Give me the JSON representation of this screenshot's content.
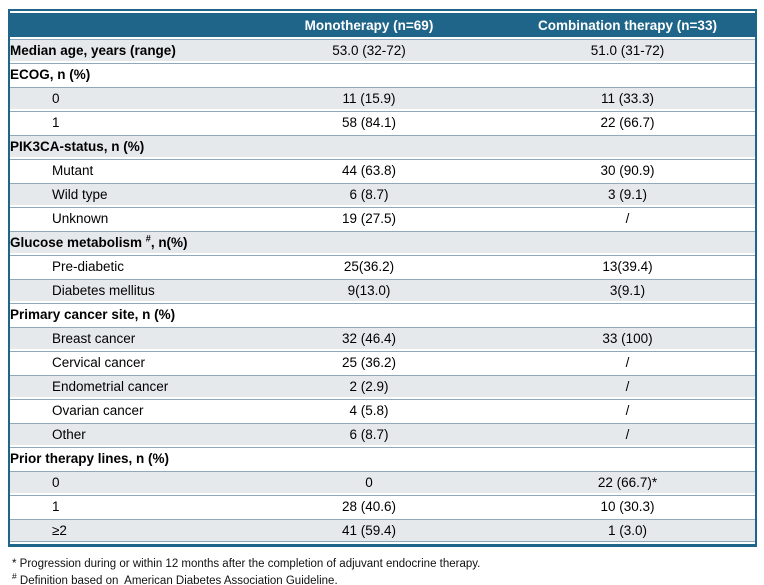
{
  "colors": {
    "header_bg": "#1F6489",
    "header_text": "#FFFFFF",
    "outer_border": "#1F6489",
    "row_divider": "#8FA9BA",
    "shaded_row_bg": "#E6E9EB",
    "body_text": "#000000"
  },
  "table": {
    "columns": [
      {
        "label": ""
      },
      {
        "label": "Monotherapy (n=69)"
      },
      {
        "label": "Combination therapy (n=33)"
      }
    ],
    "rows": [
      {
        "kind": "stat",
        "bold": true,
        "indent": false,
        "shaded": true,
        "label": "Median age, years (range)",
        "monotherapy": "53.0 (32-72)",
        "combination": "51.0 (31-72)"
      },
      {
        "kind": "section",
        "shaded": false,
        "label": "ECOG, n (%)"
      },
      {
        "kind": "stat",
        "bold": false,
        "indent": true,
        "shaded": true,
        "label": "0",
        "monotherapy": "11 (15.9)",
        "combination": "11 (33.3)"
      },
      {
        "kind": "stat",
        "bold": false,
        "indent": true,
        "shaded": false,
        "label": "1",
        "monotherapy": "58 (84.1)",
        "combination": "22 (66.7)"
      },
      {
        "kind": "section",
        "shaded": true,
        "label": "PIK3CA-status, n (%)"
      },
      {
        "kind": "stat",
        "bold": false,
        "indent": true,
        "shaded": false,
        "label": "Mutant",
        "monotherapy": "44 (63.8)",
        "combination": "30 (90.9)"
      },
      {
        "kind": "stat",
        "bold": false,
        "indent": true,
        "shaded": true,
        "label": "Wild type",
        "monotherapy": "6 (8.7)",
        "combination": "3 (9.1)"
      },
      {
        "kind": "stat",
        "bold": false,
        "indent": true,
        "shaded": false,
        "label": "Unknown",
        "monotherapy": "19 (27.5)",
        "combination": "/"
      },
      {
        "kind": "section",
        "shaded": true,
        "label": "Glucose metabolism ",
        "label_sup": "#",
        "label_suffix": ", n(%)"
      },
      {
        "kind": "stat",
        "bold": false,
        "indent": true,
        "shaded": false,
        "label": "Pre-diabetic",
        "monotherapy": "25(36.2)",
        "combination": "13(39.4)"
      },
      {
        "kind": "stat",
        "bold": false,
        "indent": true,
        "shaded": true,
        "label": "Diabetes mellitus",
        "monotherapy": "9(13.0)",
        "combination": "3(9.1)"
      },
      {
        "kind": "section",
        "shaded": false,
        "label": "Primary cancer site, n (%)"
      },
      {
        "kind": "stat",
        "bold": false,
        "indent": true,
        "shaded": true,
        "label": "Breast cancer",
        "monotherapy": "32 (46.4)",
        "combination": "33 (100)"
      },
      {
        "kind": "stat",
        "bold": false,
        "indent": true,
        "shaded": false,
        "label": "Cervical cancer",
        "monotherapy": "25 (36.2)",
        "combination": "/"
      },
      {
        "kind": "stat",
        "bold": false,
        "indent": true,
        "shaded": true,
        "label": "Endometrial cancer",
        "monotherapy": "2 (2.9)",
        "combination": "/"
      },
      {
        "kind": "stat",
        "bold": false,
        "indent": true,
        "shaded": false,
        "label": "Ovarian cancer",
        "monotherapy": "4 (5.8)",
        "combination": "/"
      },
      {
        "kind": "stat",
        "bold": false,
        "indent": true,
        "shaded": true,
        "label": "Other",
        "monotherapy": "6 (8.7)",
        "combination": "/"
      },
      {
        "kind": "section",
        "shaded": false,
        "label": "Prior therapy lines, n (%)"
      },
      {
        "kind": "stat",
        "bold": false,
        "indent": true,
        "shaded": true,
        "label": "0",
        "monotherapy": "0",
        "combination": "22 (66.7)*"
      },
      {
        "kind": "stat",
        "bold": false,
        "indent": true,
        "shaded": false,
        "label": "1",
        "monotherapy": "28 (40.6)",
        "combination": "10 (30.3)"
      },
      {
        "kind": "stat",
        "bold": false,
        "indent": true,
        "shaded": true,
        "label": "≥2",
        "monotherapy": "41 (59.4)",
        "combination": "1 (3.0)"
      }
    ]
  },
  "footnotes": [
    {
      "marker": "*",
      "superscript": false,
      "text": " Progression during or within 12 months after the completion of adjuvant endocrine therapy."
    },
    {
      "marker": "#",
      "superscript": true,
      "text": " Definition based on  American Diabetes Association Guideline."
    }
  ]
}
